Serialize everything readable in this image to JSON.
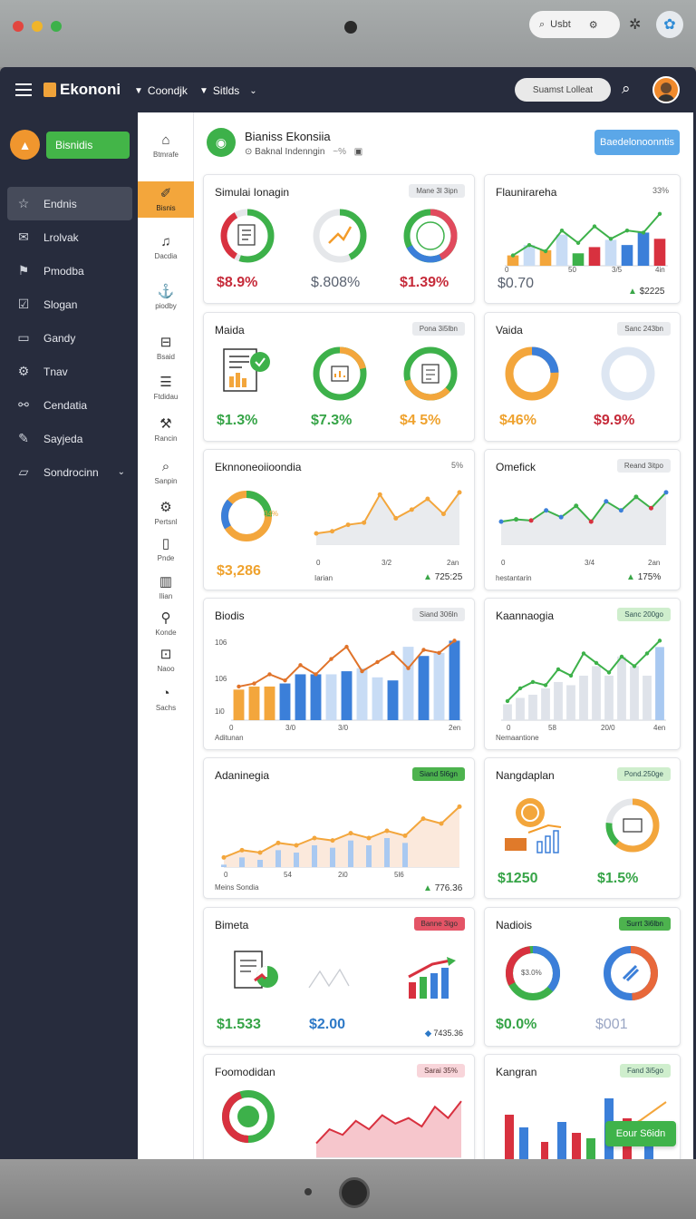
{
  "os": {
    "search_label": "Usbt"
  },
  "app": {
    "name": "Ekononi",
    "nav": [
      "Coondjk",
      "Sitlds"
    ],
    "search_placeholder": "Suamst Lolleat"
  },
  "sidebar": {
    "cta": "Bisnidis",
    "items": [
      {
        "label": "Endnis",
        "icon": "star-icon"
      },
      {
        "label": "Lrolvak",
        "icon": "mail-icon"
      },
      {
        "label": "Pmodba",
        "icon": "flag-icon"
      },
      {
        "label": "Slogan",
        "icon": "check-icon"
      },
      {
        "label": "Gandy",
        "icon": "inbox-icon"
      },
      {
        "label": "Tnav",
        "icon": "gear-icon"
      },
      {
        "label": "Cendatia",
        "icon": "link-icon"
      },
      {
        "label": "Sayjeda",
        "icon": "pen-icon"
      },
      {
        "label": "Sondrocinn",
        "icon": "folder-icon"
      }
    ]
  },
  "rail": [
    {
      "label": "Btmrafe",
      "icon": "home-icon"
    },
    {
      "label": "Bisnis",
      "icon": "brush-icon"
    },
    {
      "label": "Dacdia",
      "icon": "bell-icon"
    },
    {
      "label": "piodby",
      "icon": "anchor-icon"
    },
    {
      "label": "Bsaid",
      "icon": "mailbox-icon"
    },
    {
      "label": "Ftdidau",
      "icon": "server-icon"
    },
    {
      "label": "Rancin",
      "icon": "wrench-icon"
    },
    {
      "label": "Sanpin",
      "icon": "search-icon"
    },
    {
      "label": "Pertsnl",
      "icon": "tools-icon"
    },
    {
      "label": "Pnde",
      "icon": "phone-icon"
    },
    {
      "label": "Ilian",
      "icon": "book-icon"
    },
    {
      "label": "Konde",
      "icon": "magnifier-icon"
    },
    {
      "label": "Naoo",
      "icon": "briefcase-icon"
    },
    {
      "label": "Sachs",
      "icon": "clock-icon"
    }
  ],
  "header": {
    "title": "Bianiss Ekonsiia",
    "subtitle": "Baknal Indenngin",
    "subtitle_pct": "~%",
    "button": "Baedelonoonntis"
  },
  "cards": {
    "c1": {
      "title": "Simulai Ionagin",
      "badge": "Mane 3l 3ipn",
      "v1": "$8.9%",
      "v2": "$.808%",
      "v3": "$1.39%"
    },
    "c2": {
      "title": "Flaunirareha",
      "pct": "33%",
      "value": "$0.70",
      "delta": "$2225",
      "ticks": [
        "0",
        "50",
        "3/5",
        "4in"
      ]
    },
    "c3": {
      "title": "Maida",
      "badge": "Pona 3i5lbn",
      "v1": "$1.3%",
      "v2": "$7.3%",
      "v3": "$4 5%"
    },
    "c4": {
      "title": "Vaida",
      "badge": "Sanc 243bn",
      "v1": "$46%",
      "v2": "$9.9%"
    },
    "c5": {
      "title": "Eknnoneoiioondia",
      "pct": "5%",
      "value": "$3,286",
      "small": "Iarian",
      "delta": "725:25",
      "ticks": [
        "0",
        "3/2",
        "2an"
      ],
      "donut_label": "34%"
    },
    "c6": {
      "title": "Omefick",
      "badge": "Reand 3itpo",
      "small": "hestantarin",
      "delta": "175%",
      "ticks": [
        "0",
        "3/4",
        "2an"
      ]
    },
    "c7": {
      "title": "Biodis",
      "badge": "Siand 306ln",
      "small": "Aditunan",
      "yticks": [
        "106",
        "106",
        "1i0"
      ],
      "ticks": [
        "0",
        "3/0",
        "3/0",
        "2en"
      ]
    },
    "c8": {
      "title": "Kaannaogia",
      "badge": "Sanc 200go",
      "small": "Nemaantione",
      "ticks": [
        "0",
        "58",
        "20/0",
        "4en"
      ]
    },
    "c9": {
      "title": "Adaninegia",
      "badge": "Siand 5l6gn",
      "small": "Meins Sondia",
      "delta": "776.36",
      "ticks": [
        "0",
        "54",
        "2i0",
        "5l6"
      ]
    },
    "c10": {
      "title": "Nangdaplan",
      "badge": "Pond.250ge",
      "v1": "$1250",
      "v2": "$1.5%"
    },
    "c11": {
      "title": "Bimeta",
      "badge": "Banne 3igo",
      "v1": "$1.533",
      "v2": "$2.00",
      "delta": "7435.36"
    },
    "c12": {
      "title": "Nadiois",
      "badge": "Surrt 3i6lbn",
      "v1": "$0.0%",
      "v2": "$001",
      "donut_label": "$3.0%"
    },
    "c13": {
      "title": "Foomodidan",
      "badge": "Sarai 35%"
    },
    "c14": {
      "title": "Kangran",
      "badge": "Fand 3i5go"
    }
  },
  "float_button": "Eour S6idn",
  "colors": {
    "green": "#43b548",
    "orange": "#f3a63c",
    "blue": "#5ba7e8",
    "red": "#d8313f",
    "navy": "#272c3d"
  },
  "chart_data": [
    {
      "type": "bar",
      "title": "Flaunirareha",
      "series": [
        {
          "values": [
            1,
            2,
            1.5,
            3,
            1.2,
            1.8,
            2.5,
            2,
            3.2,
            2.6
          ]
        }
      ],
      "line": [
        1,
        2,
        1.4,
        3.4,
        2.2,
        3.8,
        2.6,
        3.4,
        3.2,
        5
      ]
    },
    {
      "type": "line",
      "title": "Eknnoneoiioondia",
      "series": [
        {
          "values": [
            1,
            1.2,
            1.8,
            2,
            4.6,
            2.4,
            3.2,
            4.2,
            2.8,
            4.8
          ]
        }
      ]
    },
    {
      "type": "line",
      "title": "Omefick",
      "series": [
        {
          "values": [
            2,
            2.2,
            2.1,
            3,
            2.4,
            3.4,
            2,
            3.8,
            3,
            4.2,
            3.2,
            4.6
          ]
        }
      ]
    },
    {
      "type": "bar",
      "title": "Biodis",
      "series": [
        {
          "values": [
            2,
            2.2,
            2.2,
            2.4,
            3,
            3,
            3,
            3.2,
            3.4,
            2.8,
            2.6,
            4.8,
            4.2,
            4.4,
            5.2
          ]
        }
      ],
      "line": [
        2.2,
        2.4,
        3,
        2.6,
        3.6,
        3,
        4,
        4.8,
        3.2,
        3.8,
        4.4,
        3.4,
        4.6,
        4.4,
        5.2
      ]
    },
    {
      "type": "bar",
      "title": "Kaannaogia",
      "series": [
        {
          "values": [
            1,
            1.4,
            1.6,
            2,
            2.4,
            2.2,
            2.8,
            3.4,
            2.8,
            4,
            3.4,
            2.8,
            4.6
          ]
        }
      ],
      "line": [
        1.2,
        2,
        2.4,
        2.2,
        3.2,
        2.8,
        4.2,
        3.6,
        3,
        4,
        3.4,
        4.2,
        5
      ]
    },
    {
      "type": "area",
      "title": "Adaninegia",
      "series": [
        {
          "values": [
            0.8,
            1.4,
            1.2,
            2,
            1.8,
            2.4,
            2.2,
            2.8,
            2.4,
            3,
            2.6,
            4,
            3.6,
            5
          ]
        }
      ]
    },
    {
      "type": "area",
      "title": "Foomodidan",
      "series": [
        {
          "values": [
            1,
            2,
            1.6,
            2.6,
            2,
            3,
            2.4,
            2.8,
            2.2,
            3.6,
            2.8,
            4
          ]
        }
      ]
    }
  ]
}
